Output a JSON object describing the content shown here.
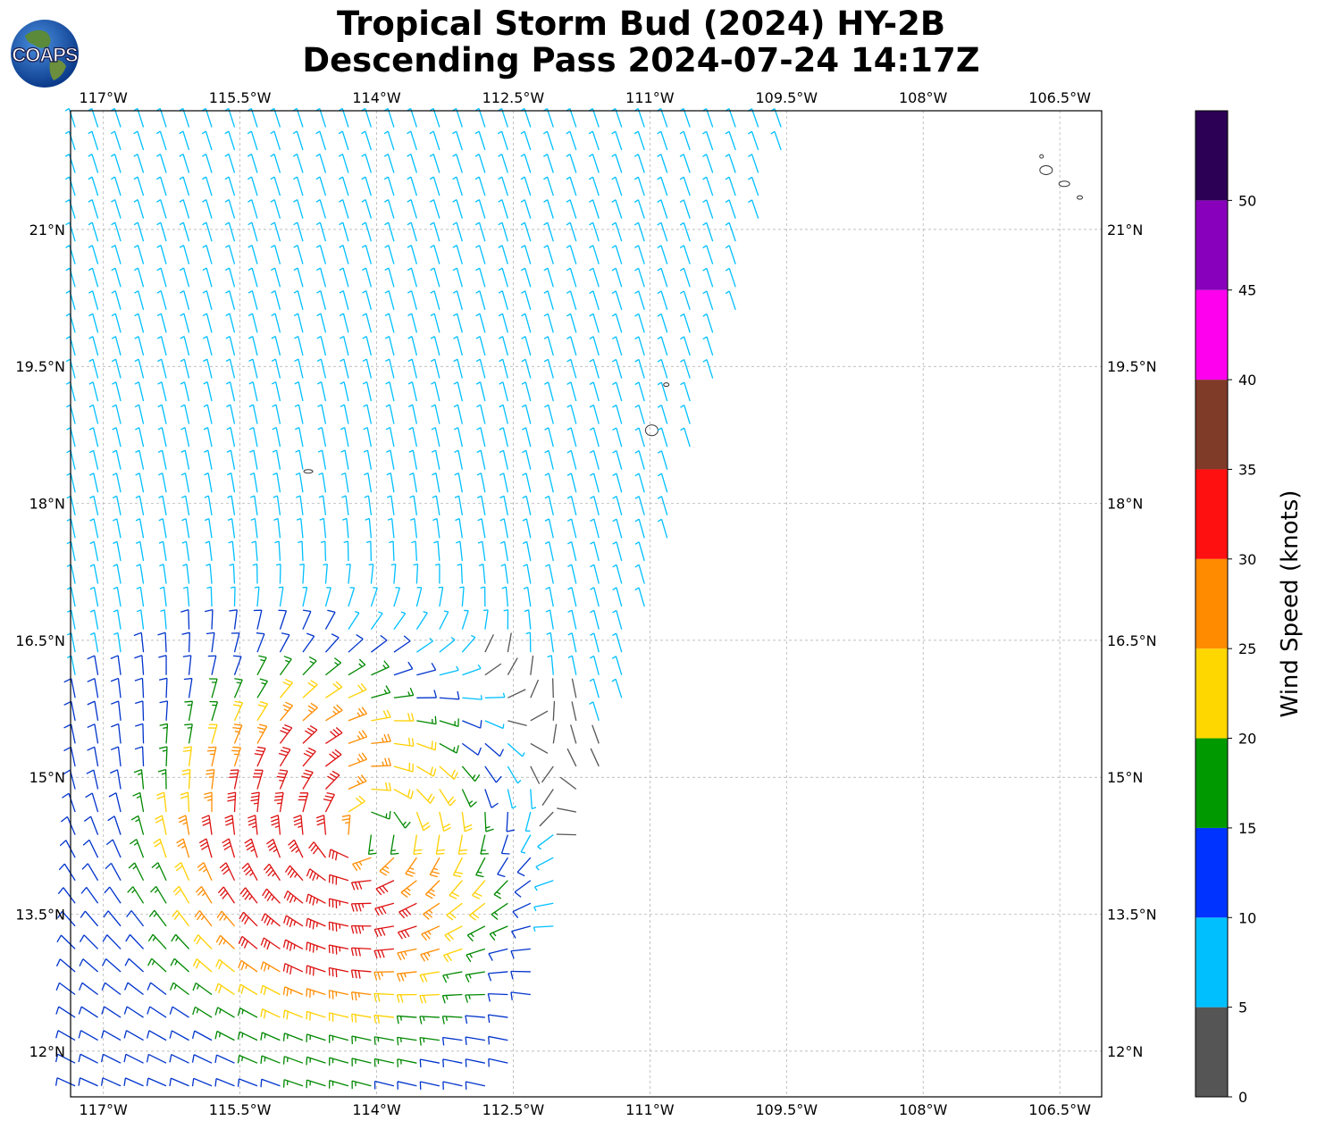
{
  "title": {
    "line1": "Tropical Storm Bud (2024) HY-2B",
    "line2": "Descending Pass 2024-07-24 14:17Z"
  },
  "logo": {
    "text": "COAPS",
    "icon": "globe-icon"
  },
  "map": {
    "lon_range": [
      -117.36,
      -106.04
    ],
    "lat_range": [
      11.5,
      22.3
    ],
    "lon_ticks": [
      -117,
      -115.5,
      -114,
      -112.5,
      -111,
      -109.5,
      -108,
      -106.5
    ],
    "lon_tick_labels": [
      "117°W",
      "115.5°W",
      "114°W",
      "112.5°W",
      "111°W",
      "109.5°W",
      "108°W",
      "106.5°W"
    ],
    "lat_ticks": [
      21,
      19.5,
      18,
      16.5,
      15,
      13.5,
      12
    ],
    "lat_tick_labels": [
      "21°N",
      "19.5°N",
      "18°N",
      "16.5°N",
      "15°N",
      "13.5°N",
      "12°N"
    ],
    "gridlines": true,
    "storm_center": {
      "lon": -114.25,
      "lat": 14.35
    },
    "swath": "left of approximately 109.5°W at 22.3°N to 112.5°W at 11.5°N",
    "islands": "Revillagigedo Islands and Islas Marías"
  },
  "colorbar": {
    "label": "Wind Speed (knots)",
    "bounds": [
      0,
      5,
      10,
      15,
      20,
      25,
      30,
      35,
      40,
      45,
      50,
      55
    ],
    "tick_values": [
      0,
      5,
      10,
      15,
      20,
      25,
      30,
      35,
      40,
      45,
      50
    ],
    "tick_labels": [
      "0",
      "5",
      "10",
      "15",
      "20",
      "25",
      "30",
      "35",
      "40",
      "45",
      "50"
    ],
    "colors": [
      "#555555",
      "#00bfff",
      "#0033ff",
      "#009900",
      "#ffd700",
      "#ff8c00",
      "#ff1010",
      "#7f3a28",
      "#ff00ee",
      "#8800bb",
      "#2b0055"
    ]
  },
  "barb_colors": {
    "0-5": "#555555",
    "5-10": "#00bfff",
    "10-15": "#0033cc",
    "15-20": "#008800",
    "20-25": "#ffd000",
    "25-30": "#ff8c00",
    "30-35": "#dd1010"
  }
}
